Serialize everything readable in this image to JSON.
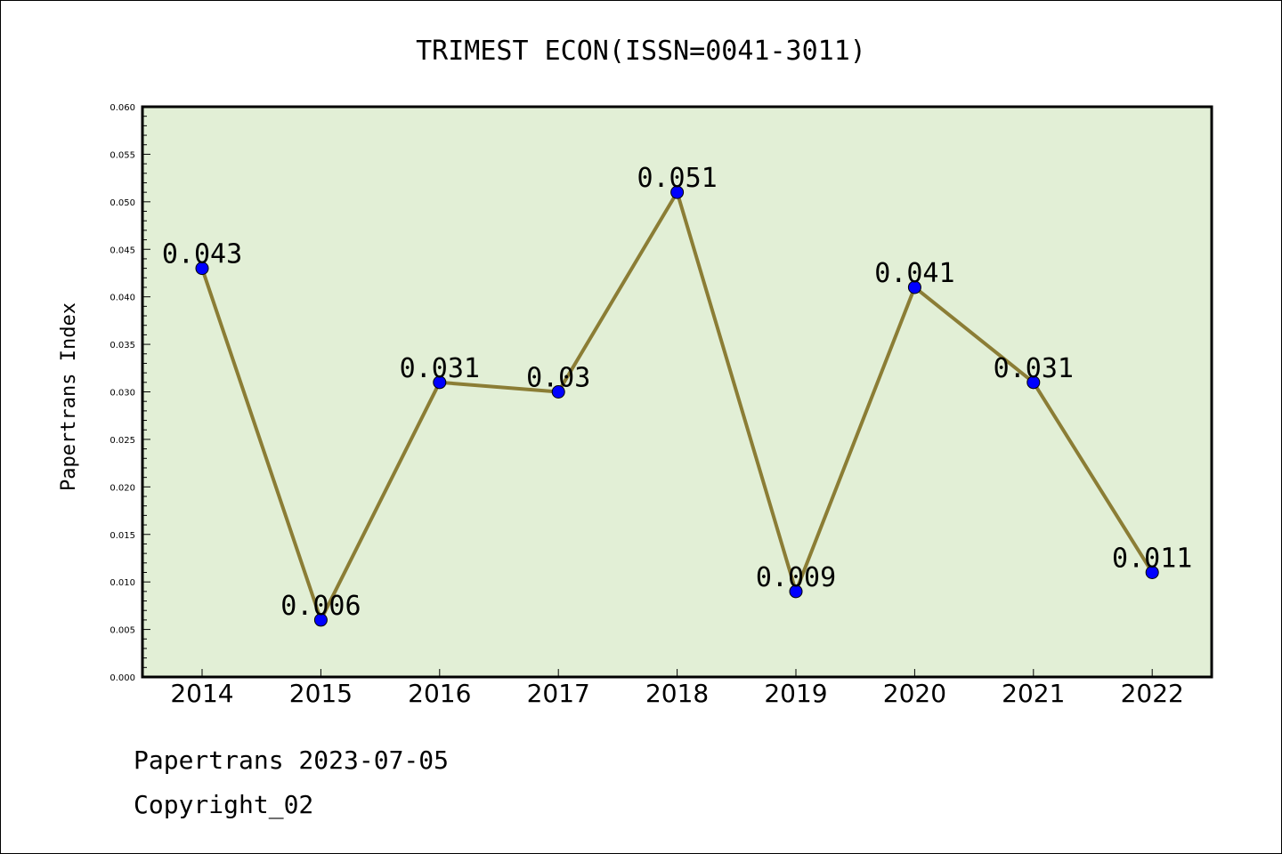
{
  "chart_data": {
    "type": "line",
    "title": "TRIMEST ECON(ISSN=0041-3011)",
    "xlabel": "",
    "ylabel": "Papertrans Index",
    "categories": [
      "2014",
      "2015",
      "2016",
      "2017",
      "2018",
      "2019",
      "2020",
      "2021",
      "2022"
    ],
    "values": [
      0.043,
      0.006,
      0.031,
      0.03,
      0.051,
      0.009,
      0.041,
      0.031,
      0.011
    ],
    "data_labels": [
      "0.043",
      "0.006",
      "0.031",
      "0.03",
      "0.051",
      "0.009",
      "0.041",
      "0.031",
      "0.011"
    ],
    "ylim": [
      0,
      0.06
    ],
    "yticks": [
      "0.000",
      "0.005",
      "0.010",
      "0.015",
      "0.020",
      "0.025",
      "0.030",
      "0.035",
      "0.040",
      "0.045",
      "0.050",
      "0.055",
      "0.060"
    ],
    "grid": false,
    "legend": "none",
    "colors": {
      "plot_background": "#e2efd6",
      "line": "#8b7d35",
      "marker": "#0000ff"
    }
  },
  "footer": {
    "line1": "Papertrans 2023-07-05",
    "line2": "Copyright_02"
  }
}
